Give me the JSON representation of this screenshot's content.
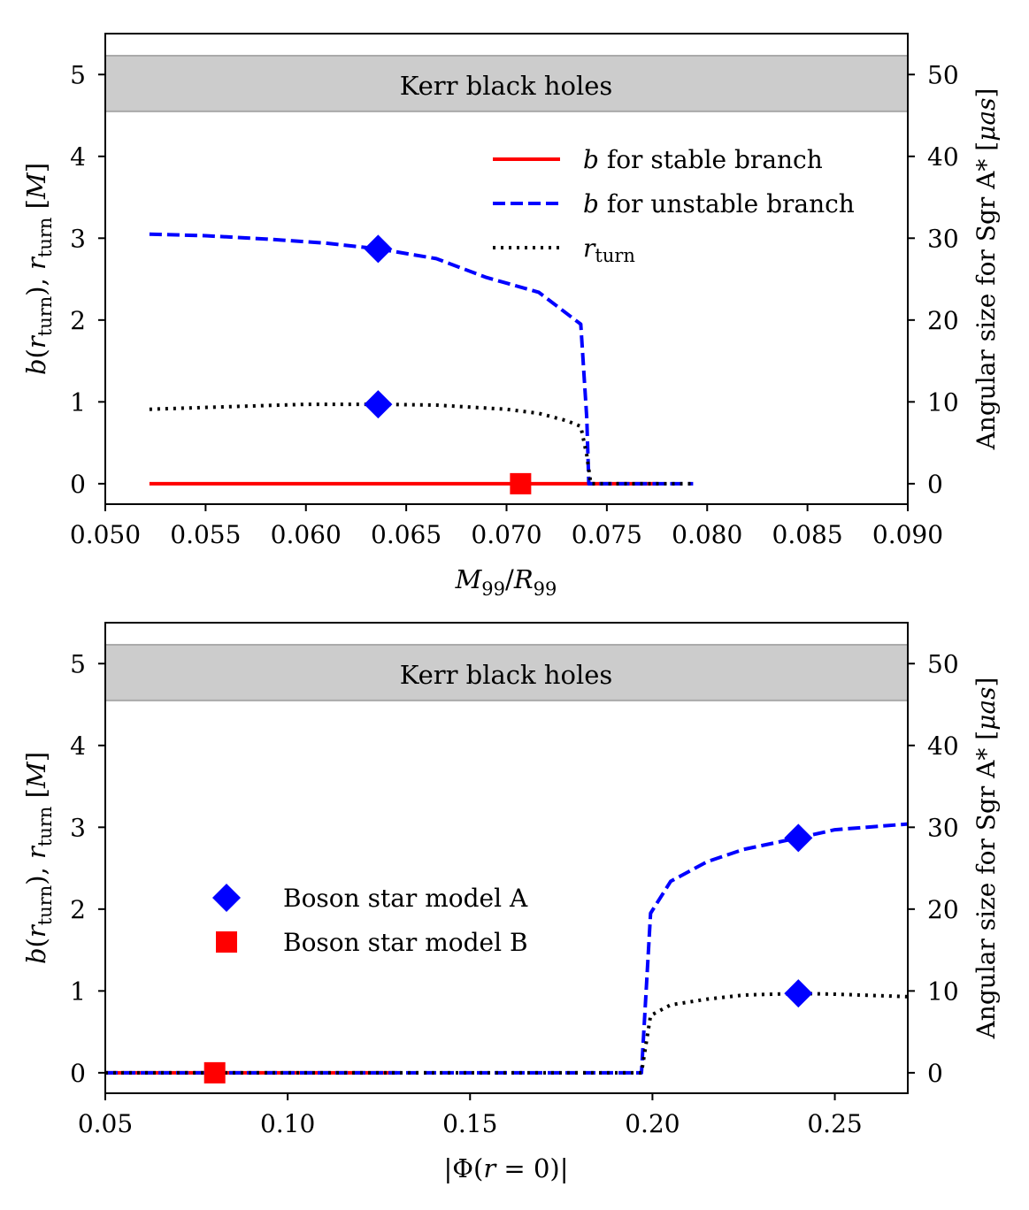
{
  "chart_data": [
    {
      "type": "line",
      "xlabel": "M₉₉/R₉₉",
      "ylabel": "b(r_turn),  r_turn [M]",
      "ylabel_right": "Angular size for Sgr A* [μas]",
      "xlim": [
        0.05,
        0.09
      ],
      "ylim": [
        -0.25,
        5.5
      ],
      "ylim_right": [
        -2.5,
        55
      ],
      "xticks": [
        "0.050",
        "0.055",
        "0.060",
        "0.065",
        "0.070",
        "0.075",
        "0.080",
        "0.085",
        "0.090"
      ],
      "yticks": [
        "0",
        "1",
        "2",
        "3",
        "4",
        "5"
      ],
      "yticks_right": [
        "0",
        "10",
        "20",
        "30",
        "40",
        "50"
      ],
      "band": {
        "label": "Kerr black holes",
        "range": [
          4.55,
          5.23
        ]
      },
      "series": [
        {
          "name": "b for stable branch",
          "style": "solid",
          "color": "#ff0000",
          "x": [
            0.0522,
            0.0775
          ],
          "y": [
            0.0,
            0.0
          ]
        },
        {
          "name": "b for unstable branch",
          "style": "dashed",
          "color": "#0000ff",
          "x": [
            0.0522,
            0.055,
            0.058,
            0.061,
            0.0636,
            0.0665,
            0.069,
            0.0716,
            0.0737,
            0.074,
            0.0741,
            0.076,
            0.0793
          ],
          "y": [
            3.05,
            3.03,
            2.99,
            2.94,
            2.87,
            2.75,
            2.52,
            2.34,
            1.95,
            0.8,
            0.0,
            0.0,
            0.0
          ]
        },
        {
          "name": "r_turn",
          "style": "dotted",
          "color": "#000000",
          "x": [
            0.0522,
            0.056,
            0.06,
            0.0636,
            0.0665,
            0.07,
            0.0716,
            0.073,
            0.0737,
            0.074,
            0.0742,
            0.076,
            0.0793
          ],
          "y": [
            0.91,
            0.94,
            0.97,
            0.97,
            0.96,
            0.91,
            0.86,
            0.77,
            0.7,
            0.35,
            0.0,
            0.0,
            0.0
          ]
        }
      ],
      "markers": [
        {
          "model": "A",
          "shape": "diamond",
          "color": "#0000ff",
          "x": 0.0636,
          "y": 2.87
        },
        {
          "model": "A",
          "shape": "diamond",
          "color": "#0000ff",
          "x": 0.0636,
          "y": 0.97
        },
        {
          "model": "B",
          "shape": "square",
          "color": "#ff0000",
          "x": 0.0707,
          "y": 0.0
        }
      ]
    },
    {
      "type": "line",
      "xlabel": "|Φ(r = 0)|",
      "ylabel": "b(r_turn),  r_turn [M]",
      "ylabel_right": "Angular size for Sgr A* [μas]",
      "xlim": [
        0.05,
        0.27
      ],
      "ylim": [
        -0.25,
        5.5
      ],
      "ylim_right": [
        -2.5,
        55
      ],
      "xticks": [
        "0.05",
        "0.10",
        "0.15",
        "0.20",
        "0.25"
      ],
      "yticks": [
        "0",
        "1",
        "2",
        "3",
        "4",
        "5"
      ],
      "yticks_right": [
        "0",
        "10",
        "20",
        "30",
        "40",
        "50"
      ],
      "band": {
        "label": "Kerr black holes",
        "range": [
          4.55,
          5.23
        ]
      },
      "series": [
        {
          "name": "b (stable branch)",
          "style": "solid",
          "color": "#ff0000",
          "x": [
            0.05,
            0.13
          ],
          "y": [
            0.0,
            0.0
          ]
        },
        {
          "name": "b (unstable branch)",
          "style": "dashed",
          "color": "#0000ff",
          "x": [
            0.05,
            0.13,
            0.197,
            0.1995,
            0.205,
            0.215,
            0.225,
            0.24,
            0.25,
            0.27
          ],
          "y": [
            0.0,
            0.0,
            0.0,
            1.95,
            2.34,
            2.58,
            2.73,
            2.87,
            2.97,
            3.04
          ]
        },
        {
          "name": "r_turn",
          "style": "dotted",
          "color": "#000000",
          "x": [
            0.05,
            0.197,
            0.1995,
            0.205,
            0.215,
            0.225,
            0.24,
            0.25,
            0.27
          ],
          "y": [
            0.0,
            0.0,
            0.7,
            0.83,
            0.9,
            0.95,
            0.97,
            0.96,
            0.93
          ]
        }
      ],
      "markers": [
        {
          "model": "A",
          "shape": "diamond",
          "color": "#0000ff",
          "x": 0.24,
          "y": 2.87
        },
        {
          "model": "A",
          "shape": "diamond",
          "color": "#0000ff",
          "x": 0.24,
          "y": 0.97
        },
        {
          "model": "B",
          "shape": "square",
          "color": "#ff0000",
          "x": 0.08,
          "y": 0.0
        }
      ]
    }
  ],
  "legends": {
    "top": [
      {
        "label_sym": "b",
        "label_text": " for stable branch",
        "style": "solid",
        "color": "#ff0000"
      },
      {
        "label_sym": "b",
        "label_text": " for unstable branch",
        "style": "dashed",
        "color": "#0000ff"
      },
      {
        "label_sym": "r",
        "label_sub": "turn",
        "style": "dotted",
        "color": "#000000"
      }
    ],
    "bottom": [
      {
        "label": "Boson star model A",
        "shape": "diamond",
        "color": "#0000ff"
      },
      {
        "label": "Boson star model B",
        "shape": "square",
        "color": "#ff0000"
      }
    ]
  }
}
